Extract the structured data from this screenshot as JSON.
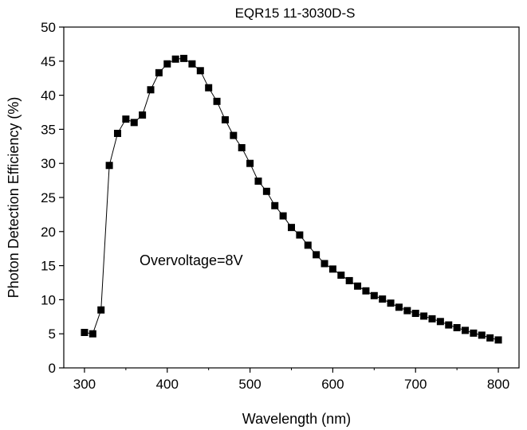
{
  "chart_data": {
    "type": "line",
    "title": "EQR15 11-3030D-S",
    "xlabel": "Wavelength (nm)",
    "ylabel": "Photon  Detection  Efficiency (%)",
    "annotation": "Overvoltage=8V",
    "xlim": [
      275,
      825
    ],
    "ylim": [
      0,
      50
    ],
    "xticks": [
      300,
      400,
      500,
      600,
      700,
      800
    ],
    "yticks": [
      0,
      5,
      10,
      15,
      20,
      25,
      30,
      35,
      40,
      45,
      50
    ],
    "grid": false,
    "marker": "square",
    "line_color": "#000000",
    "marker_color": "#000000",
    "series": [
      {
        "x": [
          300,
          310,
          320,
          330,
          340,
          350,
          360,
          370,
          380,
          390,
          400,
          410,
          420,
          430,
          440,
          450,
          460,
          470,
          480,
          490,
          500,
          510,
          520,
          530,
          540,
          550,
          560,
          570,
          580,
          590,
          600,
          610,
          620,
          630,
          640,
          650,
          660,
          670,
          680,
          690,
          700,
          710,
          720,
          730,
          740,
          750,
          760,
          770,
          780,
          790,
          800
        ],
        "values": [
          5.2,
          5.0,
          8.5,
          29.7,
          34.4,
          36.5,
          36.0,
          37.1,
          40.8,
          43.3,
          44.6,
          45.3,
          45.4,
          44.6,
          43.6,
          41.1,
          39.1,
          36.4,
          34.1,
          32.3,
          30.0,
          27.4,
          25.9,
          23.8,
          22.3,
          20.6,
          19.5,
          18.0,
          16.6,
          15.3,
          14.5,
          13.6,
          12.8,
          12.0,
          11.3,
          10.6,
          10.1,
          9.5,
          8.9,
          8.4,
          8.0,
          7.6,
          7.2,
          6.8,
          6.3,
          5.9,
          5.5,
          5.1,
          4.8,
          4.4,
          4.1
        ]
      }
    ]
  }
}
